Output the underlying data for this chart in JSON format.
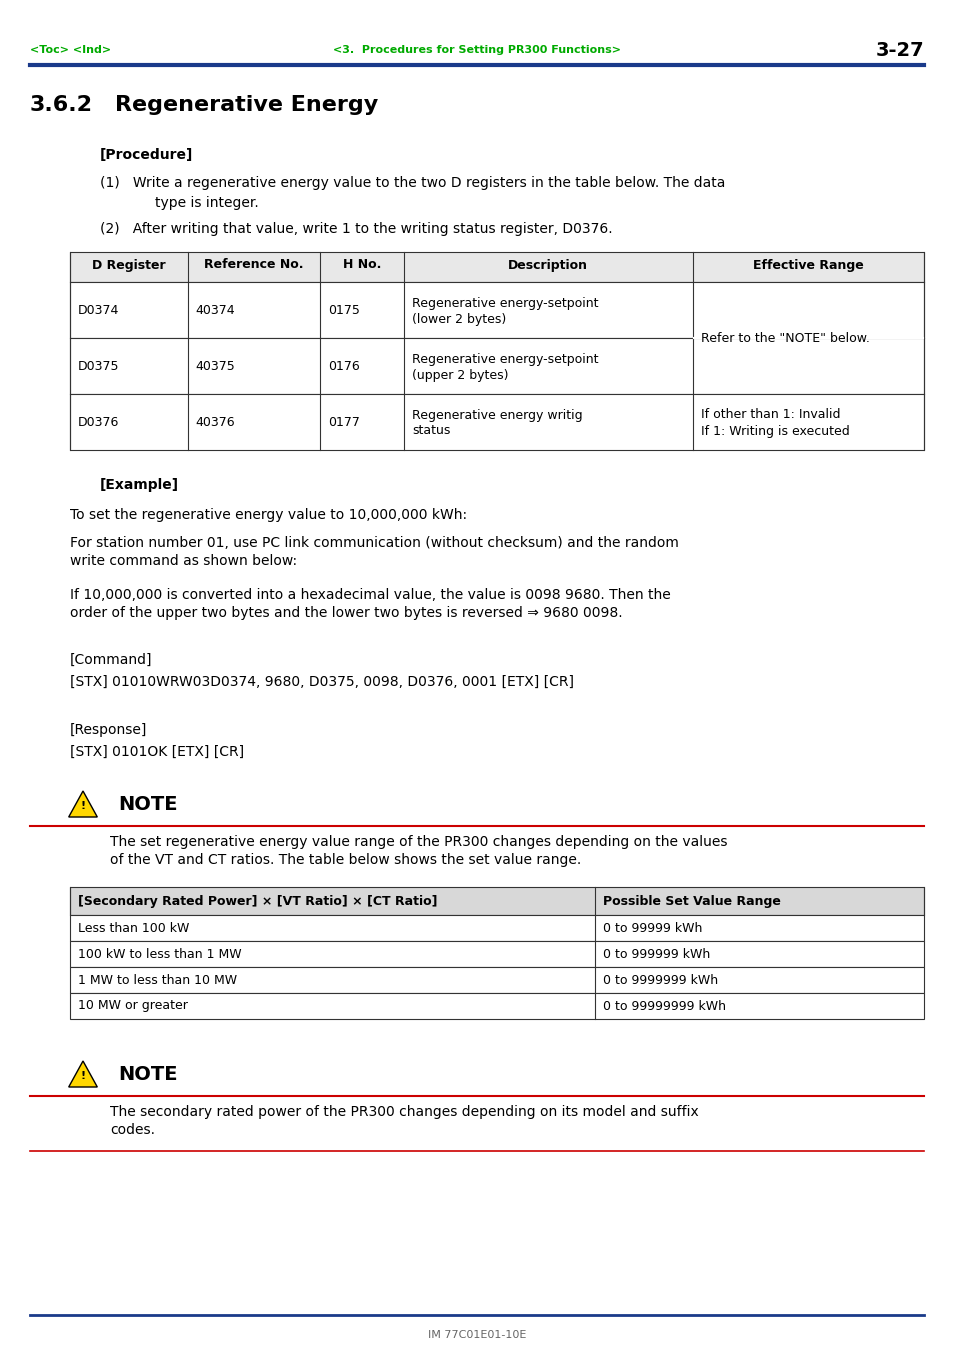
{
  "bg_color": "#ffffff",
  "header_text_left": "<Toc> <Ind>",
  "header_text_center": "<3.  Procedures for Setting PR300 Functions>",
  "header_text_right": "3-27",
  "header_color": "#00aa00",
  "header_line_color": "#1a3a8a",
  "section_number": "3.6.2",
  "section_title": "Regenerative Energy",
  "procedure_label": "[Procedure]",
  "item1_line1": "(1)   Write a regenerative energy value to the two D registers in the table below. The data",
  "item1_line2": "type is integer.",
  "item2": "(2)   After writing that value, write 1 to the writing status register, D0376.",
  "table1_headers": [
    "D Register",
    "Reference No.",
    "H No.",
    "Description",
    "Effective Range"
  ],
  "table1_col_props": [
    0.138,
    0.155,
    0.098,
    0.338,
    0.271
  ],
  "table1_rows": [
    [
      "D0374",
      "40374",
      "0175",
      "Regenerative energy-setpoint\n(lower 2 bytes)",
      ""
    ],
    [
      "D0375",
      "40375",
      "0176",
      "Regenerative energy-setpoint\n(upper 2 bytes)",
      ""
    ],
    [
      "D0376",
      "40376",
      "0177",
      "Regenerative energy writig\nstatus",
      "If other than 1: Invalid\nIf 1: Writing is executed"
    ]
  ],
  "eff_range_merged": "Refer to the \"NOTE\" below.",
  "example_label": "[Example]",
  "example_text1": "To set the regenerative energy value to 10,000,000 kWh:",
  "example_text2a": "For station number 01, use PC link communication (without checksum) and the random",
  "example_text2b": "write command as shown below:",
  "example_text3a": "If 10,000,000 is converted into a hexadecimal value, the value is 0098 9680. Then the",
  "example_text3b": "order of the upper two bytes and the lower two bytes is reversed ⇒ 9680 0098.",
  "command_label": "[Command]",
  "command_text": "[STX] 01010WRW03D0374, 9680, D0375, 0098, D0376, 0001 [ETX] [CR]",
  "response_label": "[Response]",
  "response_text": "[STX] 0101OK [ETX] [CR]",
  "note1_text1": "The set regenerative energy value range of the PR300 changes depending on the values",
  "note1_text2": "of the VT and CT ratios. The table below shows the set value range.",
  "table2_headers": [
    "[Secondary Rated Power] × [VT Ratio] × [CT Ratio]",
    "Possible Set Value Range"
  ],
  "table2_col_props": [
    0.615,
    0.385
  ],
  "table2_rows": [
    [
      "Less than 100 kW",
      "0 to 99999 kWh"
    ],
    [
      "100 kW to less than 1 MW",
      "0 to 999999 kWh"
    ],
    [
      "1 MW to less than 10 MW",
      "0 to 9999999 kWh"
    ],
    [
      "10 MW or greater",
      "0 to 99999999 kWh"
    ]
  ],
  "note2_text1": "The secondary rated power of the PR300 changes depending on its model and suffix",
  "note2_text2": "codes.",
  "footer_text": "IM 77C01E01-10E",
  "red_line_color": "#cc0000",
  "table_border_color": "#333333",
  "text_color": "#000000",
  "green_color": "#00aa00",
  "blue_color": "#1a3a8a"
}
